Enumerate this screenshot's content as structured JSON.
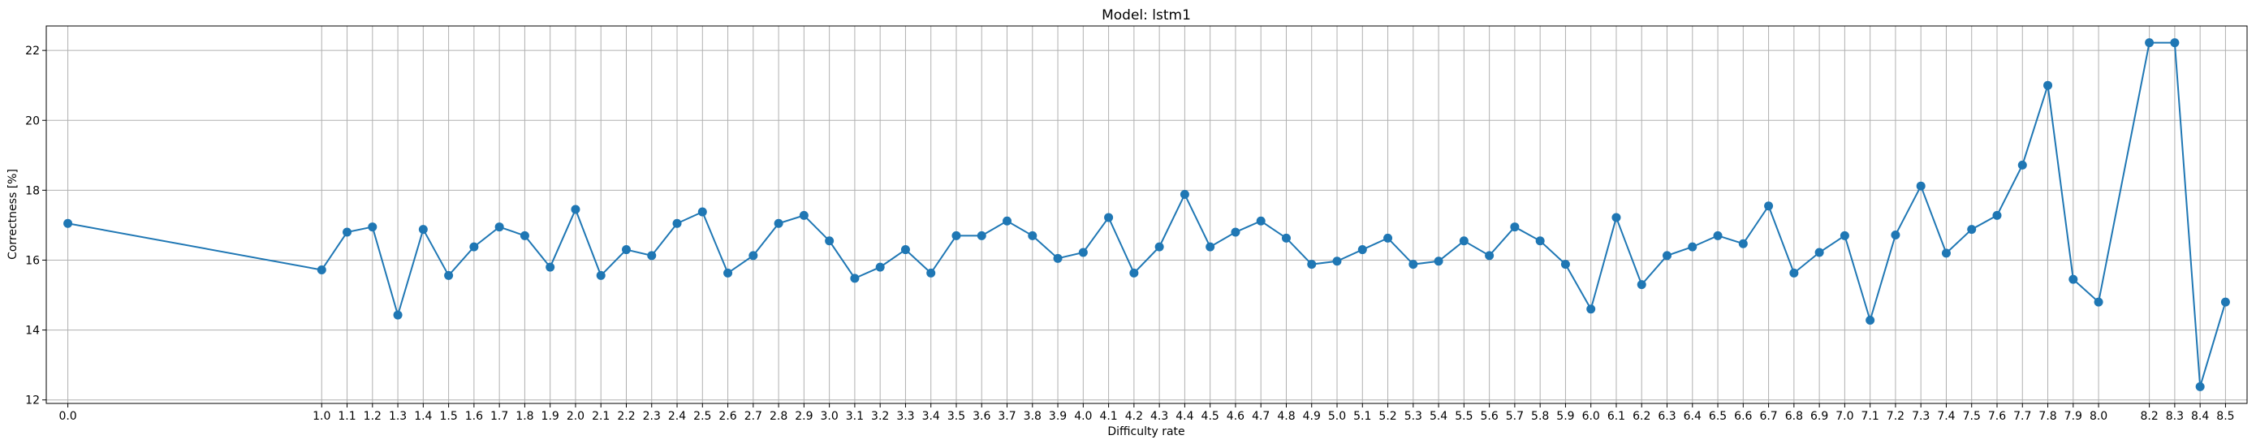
{
  "chart_data": {
    "type": "line",
    "title": "Model: lstm1",
    "xlabel": "Difficulty rate",
    "ylabel": "Correctness [%]",
    "x_ticks": [
      0.0,
      1.0,
      1.1,
      1.2,
      1.3,
      1.4,
      1.5,
      1.6,
      1.7,
      1.8,
      1.9,
      2.0,
      2.1,
      2.2,
      2.3,
      2.4,
      2.5,
      2.6,
      2.7,
      2.8,
      2.9,
      3.0,
      3.1,
      3.2,
      3.3,
      3.4,
      3.5,
      3.6,
      3.7,
      3.8,
      3.9,
      4.0,
      4.1,
      4.2,
      4.3,
      4.4,
      4.5,
      4.6,
      4.7,
      4.8,
      4.9,
      5.0,
      5.1,
      5.2,
      5.3,
      5.4,
      5.5,
      5.6,
      5.7,
      5.8,
      5.9,
      6.0,
      6.1,
      6.2,
      6.3,
      6.4,
      6.5,
      6.6,
      6.7,
      6.8,
      6.9,
      7.0,
      7.1,
      7.2,
      7.3,
      7.4,
      7.5,
      7.6,
      7.7,
      7.8,
      7.9,
      8.0,
      8.2,
      8.3,
      8.4,
      8.5
    ],
    "x_tick_labels": [
      "0.0",
      "1.0",
      "1.1",
      "1.2",
      "1.3",
      "1.4",
      "1.5",
      "1.6",
      "1.7",
      "1.8",
      "1.9",
      "2.0",
      "2.1",
      "2.2",
      "2.3",
      "2.4",
      "2.5",
      "2.6",
      "2.7",
      "2.8",
      "2.9",
      "3.0",
      "3.1",
      "3.2",
      "3.3",
      "3.4",
      "3.5",
      "3.6",
      "3.7",
      "3.8",
      "3.9",
      "4.0",
      "4.1",
      "4.2",
      "4.3",
      "4.4",
      "4.5",
      "4.6",
      "4.7",
      "4.8",
      "4.9",
      "5.0",
      "5.1",
      "5.2",
      "5.3",
      "5.4",
      "5.5",
      "5.6",
      "5.7",
      "5.8",
      "5.9",
      "6.0",
      "6.1",
      "6.2",
      "6.3",
      "6.4",
      "6.5",
      "6.6",
      "6.7",
      "6.8",
      "6.9",
      "7.0",
      "7.1",
      "7.2",
      "7.3",
      "7.4",
      "7.5",
      "7.6",
      "7.7",
      "7.8",
      "7.9",
      "8.0",
      "8.2",
      "8.3",
      "8.4",
      "8.5"
    ],
    "y_ticks": [
      12,
      14,
      16,
      18,
      20,
      22
    ],
    "y_tick_labels": [
      "12",
      "14",
      "16",
      "18",
      "20",
      "22"
    ],
    "xlim": [
      -0.085,
      8.585
    ],
    "ylim": [
      11.9,
      22.7
    ],
    "grid": true,
    "series": [
      {
        "color": "#1f77b4",
        "marker": "circle",
        "x": [
          0.0,
          1.0,
          1.1,
          1.2,
          1.3,
          1.4,
          1.5,
          1.6,
          1.7,
          1.8,
          1.9,
          2.0,
          2.1,
          2.2,
          2.3,
          2.4,
          2.5,
          2.6,
          2.7,
          2.8,
          2.9,
          3.0,
          3.1,
          3.2,
          3.3,
          3.4,
          3.5,
          3.6,
          3.7,
          3.8,
          3.9,
          4.0,
          4.1,
          4.2,
          4.3,
          4.4,
          4.5,
          4.6,
          4.7,
          4.8,
          4.9,
          5.0,
          5.1,
          5.2,
          5.3,
          5.4,
          5.5,
          5.6,
          5.7,
          5.8,
          5.9,
          6.0,
          6.1,
          6.2,
          6.3,
          6.4,
          6.5,
          6.6,
          6.7,
          6.8,
          6.9,
          7.0,
          7.1,
          7.2,
          7.3,
          7.4,
          7.5,
          7.6,
          7.7,
          7.8,
          7.9,
          8.0,
          8.2,
          8.3,
          8.4,
          8.5
        ],
        "y": [
          17.05,
          15.72,
          16.8,
          16.95,
          14.43,
          16.88,
          15.56,
          16.38,
          16.95,
          16.7,
          15.8,
          17.45,
          15.56,
          16.3,
          16.13,
          17.05,
          17.38,
          15.63,
          16.13,
          17.05,
          17.28,
          16.55,
          15.48,
          15.8,
          16.3,
          15.63,
          16.7,
          16.7,
          17.12,
          16.7,
          16.05,
          16.22,
          17.22,
          15.63,
          16.38,
          17.88,
          16.38,
          16.8,
          17.12,
          16.63,
          15.88,
          15.97,
          16.3,
          16.63,
          15.88,
          15.97,
          16.55,
          16.13,
          16.95,
          16.55,
          15.88,
          14.6,
          17.22,
          15.3,
          16.13,
          16.38,
          16.7,
          16.47,
          17.55,
          15.63,
          16.22,
          16.7,
          14.28,
          16.72,
          18.12,
          16.2,
          16.88,
          17.28,
          18.72,
          21.0,
          15.45,
          14.8,
          22.22,
          22.22,
          12.38,
          14.8
        ]
      }
    ]
  }
}
